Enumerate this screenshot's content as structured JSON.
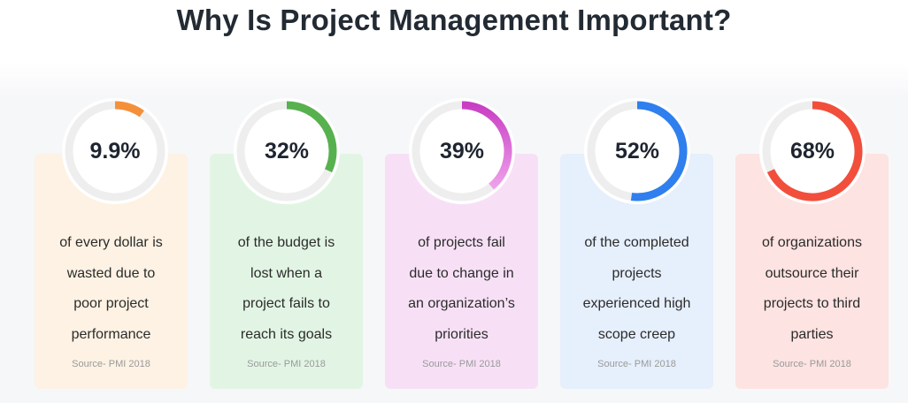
{
  "title": "Why Is Project Management Important?",
  "stats": [
    {
      "value_text": "9.9%",
      "fraction": 0.099,
      "description": "of every dollar is\nwasted due to\npoor project\nperformance",
      "source": "Source- PMI 2018",
      "card_color": "#fdf2e3",
      "arc_color": "#f5903a"
    },
    {
      "value_text": "32%",
      "fraction": 0.32,
      "description": "of the budget is\nlost when a\nproject fails to\nreach its goals",
      "source": "Source- PMI 2018",
      "card_color": "#e2f5e4",
      "arc_color": "#57b14e"
    },
    {
      "value_text": "39%",
      "fraction": 0.39,
      "description": "of projects fail\ndue to change in\nan organization’s\npriorities",
      "source": "Source- PMI 2018",
      "card_color": "#f7e0f6",
      "arc_color": "#c93ec4",
      "arc_color_end": "#eea0ea"
    },
    {
      "value_text": "52%",
      "fraction": 0.52,
      "description": "of the completed\nprojects\nexperienced high\nscope creep",
      "source": "Source- PMI 2018",
      "card_color": "#e6effc",
      "arc_color": "#2f7fee"
    },
    {
      "value_text": "68%",
      "fraction": 0.68,
      "description": "of organizations\noutsource their\nprojects to third\nparties",
      "source": "Source- PMI 2018",
      "card_color": "#fde3e1",
      "arc_color": "#f24e3c"
    }
  ]
}
